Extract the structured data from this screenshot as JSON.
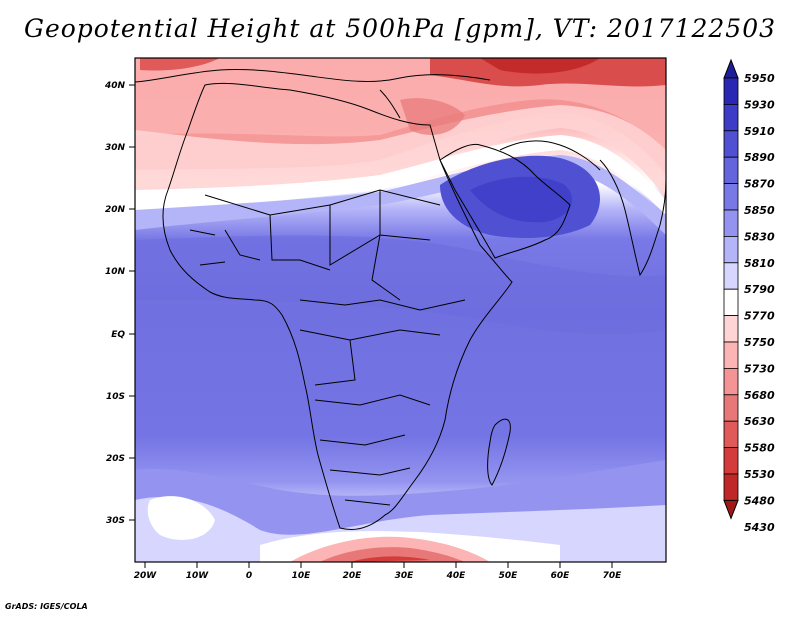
{
  "title": "Geopotential Height at 500hPa [gpm], VT: 2017122503",
  "credit": "GrADS: IGES/COLA",
  "map": {
    "variable": "Geopotential Height at 500hPa",
    "units": "gpm",
    "valid_time": "2017122503",
    "lat_labels": [
      "40N",
      "30N",
      "20N",
      "10N",
      "EQ",
      "10S",
      "20S",
      "30S"
    ],
    "lon_labels": [
      "20W",
      "10W",
      "0",
      "10E",
      "20E",
      "30E",
      "40E",
      "50E",
      "60E",
      "70E"
    ],
    "colorbar_levels": [
      "5950",
      "5930",
      "5910",
      "5890",
      "5870",
      "5850",
      "5830",
      "5810",
      "5790",
      "5770",
      "5750",
      "5730",
      "5680",
      "5630",
      "5580",
      "5530",
      "5480",
      "5430"
    ],
    "colorbar_colors": [
      "#1e1e96",
      "#2828b4",
      "#3c3cc8",
      "#5050d2",
      "#6464dc",
      "#7878e6",
      "#9494f0",
      "#b4b4f8",
      "#d6d6ff",
      "#ffffff",
      "#ffd4d4",
      "#fcb4b4",
      "#f49494",
      "#e87878",
      "#e05a5a",
      "#d43c3c",
      "#c02828",
      "#a01818"
    ]
  }
}
